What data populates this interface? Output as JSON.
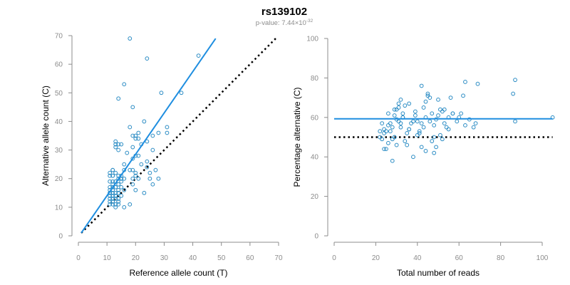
{
  "header": {
    "title": "rs139102",
    "pvalue_prefix": "p-value: 7.44×10",
    "pvalue_exponent": "-32"
  },
  "chart_data": [
    {
      "type": "scatter",
      "title": "",
      "xlabel": "Reference allele count (T)",
      "ylabel": "Alternative allele count (C)",
      "xlim": [
        0,
        70
      ],
      "ylim": [
        0,
        70
      ],
      "xticks": [
        0,
        10,
        20,
        30,
        40,
        50,
        60,
        70
      ],
      "yticks": [
        0,
        10,
        20,
        30,
        40,
        50,
        60,
        70
      ],
      "grid": false,
      "fit_line": {
        "x": [
          1,
          48
        ],
        "y": [
          1,
          69
        ],
        "color": "#1f8ee0"
      },
      "reference_line": {
        "x": [
          1,
          69
        ],
        "y": [
          1,
          69
        ],
        "style": "dotted",
        "color": "#000000"
      },
      "points": {
        "x": [
          18,
          24,
          42,
          16,
          14,
          36,
          19,
          29,
          23,
          18,
          21,
          20,
          31,
          28,
          26,
          31,
          21,
          15,
          19,
          20,
          22,
          24,
          13,
          14,
          13,
          14,
          26,
          19,
          21,
          13,
          24,
          20,
          15,
          14,
          12,
          27,
          18,
          16,
          25,
          11,
          13,
          12,
          20,
          11,
          14,
          16,
          19,
          15,
          12,
          13,
          12,
          14,
          19,
          11,
          13,
          15,
          11,
          12,
          14,
          16,
          20,
          11,
          13,
          12,
          14,
          12,
          13,
          11,
          15,
          12,
          14,
          11,
          13,
          12,
          14,
          11,
          12,
          14,
          11,
          13,
          12,
          14,
          13,
          16,
          25,
          28,
          19,
          21,
          11,
          13,
          12,
          14,
          11,
          13,
          15,
          12,
          12,
          18,
          23,
          26,
          22,
          24,
          16,
          17,
          19,
          20
        ],
        "y": [
          69,
          62,
          63,
          53,
          48,
          50,
          45,
          50,
          40,
          38,
          36,
          35,
          38,
          36,
          35,
          36,
          34,
          32,
          35,
          34,
          32,
          33,
          33,
          32,
          31,
          30,
          30,
          27,
          28,
          32,
          24,
          22,
          21,
          20,
          23,
          23,
          23,
          23,
          22,
          22,
          22,
          21,
          21,
          21,
          21,
          20,
          20,
          20,
          19,
          19,
          18,
          18,
          18,
          17,
          17,
          17,
          16,
          16,
          16,
          16,
          16,
          15,
          15,
          15,
          15,
          14,
          14,
          14,
          14,
          13,
          13,
          13,
          13,
          12,
          12,
          12,
          12,
          12,
          11,
          11,
          11,
          11,
          10,
          10,
          20,
          20,
          23,
          20,
          15,
          17,
          17,
          18,
          19,
          19,
          19,
          21,
          23,
          11,
          15,
          18,
          25,
          26,
          25,
          29,
          31,
          28
        ],
        "marker": "open-circle",
        "color": "#2b8cc4"
      }
    },
    {
      "type": "scatter",
      "title": "",
      "xlabel": "Total number of reads",
      "ylabel": "Percentage alternative (C)",
      "xlim": [
        0,
        100
      ],
      "ylim": [
        0,
        100
      ],
      "xticks": [
        0,
        20,
        40,
        60,
        80,
        100
      ],
      "yticks": [
        0,
        20,
        40,
        60,
        80,
        100
      ],
      "grid": false,
      "fit_line": {
        "x": [
          0,
          105
        ],
        "y": [
          59.3,
          59.3
        ],
        "color": "#1f8ee0"
      },
      "reference_line": {
        "x": [
          0,
          105
        ],
        "y": [
          50,
          50
        ],
        "style": "dotted",
        "color": "#000000"
      },
      "points": {
        "x": [
          105,
          87,
          86,
          87,
          63,
          69,
          68,
          62,
          60,
          52,
          56,
          50,
          53,
          48,
          45,
          42,
          47,
          57,
          55,
          51,
          49,
          44,
          46,
          43,
          48,
          44,
          41,
          42,
          40,
          38,
          39,
          36,
          35,
          33,
          32,
          31,
          30,
          29,
          28,
          27,
          26,
          25,
          24,
          23,
          22,
          24,
          26,
          28,
          30,
          32,
          34,
          36,
          33,
          31,
          29,
          27,
          25,
          23,
          22,
          24,
          26,
          28,
          29,
          31,
          33,
          35,
          37,
          39,
          41,
          43,
          45,
          47,
          49,
          51,
          53,
          55,
          57,
          59,
          61,
          63,
          65,
          67,
          29,
          30,
          32,
          34,
          36,
          38,
          40,
          42,
          44,
          46,
          48,
          50,
          52,
          54
        ],
        "y": [
          60,
          79,
          72,
          58,
          78,
          77,
          57,
          71,
          60,
          63,
          70,
          69,
          57,
          42,
          71,
          45,
          48,
          62,
          60,
          64,
          45,
          68,
          70,
          55,
          50,
          43,
          53,
          76,
          58,
          40,
          61,
          54,
          52,
          62,
          55,
          58,
          46,
          50,
          49,
          53,
          56,
          44,
          52,
          49,
          50,
          44,
          47,
          55,
          59,
          69,
          66,
          67,
          60,
          65,
          61,
          57,
          53,
          57,
          53,
          54,
          62,
          38,
          64,
          67,
          60,
          46,
          57,
          63,
          52,
          65,
          72,
          62,
          59,
          51,
          64,
          54,
          62,
          58,
          62,
          56,
          59,
          55,
          50,
          64,
          57,
          48,
          54,
          58,
          51,
          57,
          60,
          58,
          56,
          61,
          49,
          55
        ],
        "marker": "open-circle",
        "color": "#2b8cc4"
      }
    }
  ]
}
